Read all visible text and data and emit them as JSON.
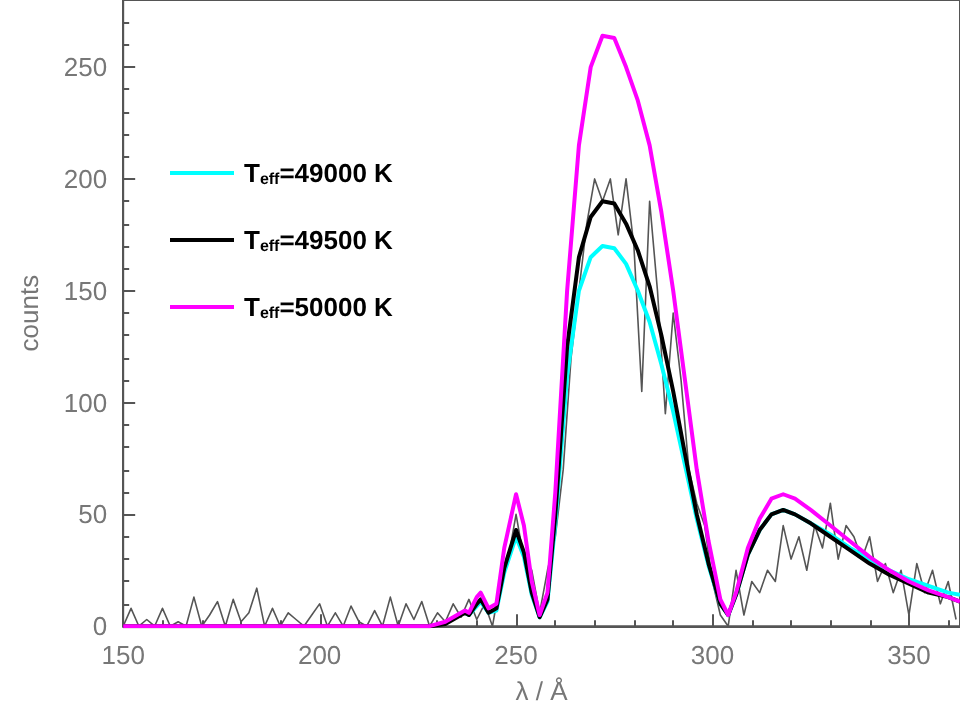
{
  "chart_data": {
    "type": "line",
    "xlabel": "λ / Å",
    "ylabel": "counts",
    "xlim": [
      150,
      363
    ],
    "ylim": [
      0,
      280
    ],
    "xticks": [
      150,
      200,
      250,
      300,
      350
    ],
    "yticks": [
      0,
      50,
      100,
      150,
      200,
      250
    ],
    "legend": "top left",
    "grid": false,
    "marker": "none",
    "line_style": "solid",
    "series": [
      {
        "color": "#555555",
        "x": [
          150,
          152,
          154,
          156,
          158,
          160,
          162,
          164,
          166,
          168,
          170,
          172,
          174,
          176,
          178,
          180,
          182,
          184,
          186,
          188,
          190,
          192,
          194,
          196,
          198,
          200,
          202,
          204,
          206,
          208,
          210,
          212,
          214,
          216,
          218,
          220,
          222,
          224,
          226,
          228,
          230,
          232,
          234,
          236,
          238,
          240,
          242,
          244,
          246,
          248,
          250,
          252,
          254,
          256,
          258,
          260,
          262,
          264,
          266,
          268,
          270,
          272,
          274,
          276,
          278,
          280,
          282,
          284,
          286,
          288,
          290,
          292,
          294,
          296,
          298,
          300,
          302,
          304,
          306,
          308,
          310,
          312,
          314,
          316,
          318,
          320,
          322,
          324,
          326,
          328,
          330,
          332,
          334,
          336,
          338,
          340,
          342,
          344,
          346,
          348,
          350,
          352,
          354,
          356,
          358,
          360,
          362
        ],
        "values": [
          0,
          8,
          0,
          3,
          0,
          8,
          0,
          2,
          0,
          13,
          0,
          5,
          11,
          0,
          12,
          2,
          6,
          17,
          0,
          8,
          0,
          6,
          3,
          0,
          5,
          10,
          0,
          6,
          0,
          9,
          2,
          0,
          7,
          0,
          13,
          0,
          10,
          3,
          11,
          0,
          6,
          2,
          10,
          4,
          12,
          3,
          10,
          0,
          20,
          30,
          50,
          30,
          25,
          6,
          25,
          40,
          70,
          120,
          150,
          180,
          200,
          190,
          200,
          175,
          200,
          170,
          105,
          190,
          150,
          95,
          140,
          110,
          70,
          55,
          45,
          20,
          5,
          0,
          25,
          5,
          20,
          15,
          25,
          20,
          45,
          30,
          40,
          25,
          45,
          35,
          55,
          30,
          45,
          40,
          30,
          40,
          20,
          28,
          15,
          25,
          5,
          28,
          15,
          25,
          10,
          20,
          3
        ]
      },
      {
        "name": "T$_{eff}$=49000 K",
        "color": "#00ffff",
        "x": [
          237,
          238,
          240,
          241,
          243,
          245,
          247,
          250,
          252,
          254,
          256,
          258,
          260,
          263,
          266,
          269,
          272,
          275,
          278,
          281,
          284,
          287,
          290,
          293,
          296,
          299,
          302,
          304,
          306,
          309,
          312,
          315,
          318,
          321,
          325,
          330,
          335,
          340,
          345,
          350,
          355,
          360,
          363
        ],
        "values": [
          6,
          5,
          9,
          11,
          6,
          7,
          24,
          40,
          31,
          14,
          4,
          11,
          46,
          112,
          150,
          165,
          170,
          169,
          162,
          150,
          136,
          117,
          96,
          72,
          48,
          27,
          10,
          5,
          14,
          32,
          43,
          50,
          52,
          50,
          46,
          41,
          35,
          30,
          25,
          21,
          18,
          15,
          14
        ]
      },
      {
        "name": "T$_{eff}$=49500 K",
        "color": "#000000",
        "x": [
          150,
          228,
          232,
          235,
          237,
          238,
          240,
          241,
          243,
          245,
          247,
          250,
          252,
          254,
          256,
          258,
          260,
          263,
          266,
          269,
          272,
          275,
          278,
          281,
          284,
          287,
          290,
          293,
          296,
          299,
          302,
          304,
          306,
          309,
          312,
          315,
          318,
          321,
          325,
          330,
          335,
          340,
          345,
          350,
          355,
          360,
          363
        ],
        "values": [
          0,
          0,
          1,
          4,
          6,
          5,
          10,
          12,
          6,
          8,
          26,
          43,
          33,
          15,
          4,
          12,
          50,
          125,
          165,
          183,
          190,
          189,
          180,
          168,
          152,
          130,
          105,
          77,
          50,
          28,
          10,
          5,
          14,
          32,
          43,
          50,
          52,
          50,
          46,
          40,
          34,
          28,
          23,
          19,
          15,
          13,
          11
        ]
      },
      {
        "name": "T$_{eff}$=50000 K",
        "color": "#ff00ff",
        "x": [
          150,
          228,
          232,
          235,
          237,
          238,
          240,
          241,
          243,
          245,
          247,
          250,
          252,
          254,
          256,
          258,
          260,
          263,
          266,
          269,
          272,
          275,
          278,
          281,
          284,
          287,
          290,
          293,
          296,
          299,
          302,
          304,
          306,
          309,
          312,
          315,
          318,
          321,
          325,
          330,
          335,
          340,
          345,
          350,
          355,
          360,
          363
        ],
        "values": [
          0,
          0,
          2,
          5,
          7,
          6,
          13,
          15,
          8,
          10,
          35,
          59,
          45,
          20,
          5,
          15,
          60,
          150,
          215,
          250,
          264,
          263,
          250,
          235,
          215,
          185,
          150,
          110,
          70,
          38,
          12,
          5,
          15,
          35,
          48,
          57,
          59,
          57,
          52,
          45,
          38,
          31,
          25,
          20,
          16,
          13,
          11
        ]
      }
    ]
  }
}
